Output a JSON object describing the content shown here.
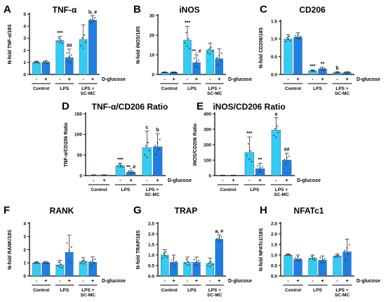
{
  "colors": {
    "light": "#33ccf2",
    "dark": "#1f7fe0",
    "axis": "#000000"
  },
  "group_labels": [
    "Control",
    "LPS",
    "LPS +",
    "SC-MC"
  ],
  "glucose_signs": [
    "-",
    "+",
    "-",
    "+",
    "-",
    "+"
  ],
  "glucose_label": "D-glucose",
  "chart_data": [
    {
      "letter": "A",
      "title": "TNF-α",
      "type": "bar",
      "ylabel": "N-fold TNF-α/18S",
      "ylim": [
        0,
        5
      ],
      "yticks": [
        0,
        1,
        2,
        3,
        4,
        5
      ],
      "values": [
        1.0,
        1.0,
        2.8,
        1.4,
        2.9,
        4.5
      ],
      "errors": [
        0.1,
        0.15,
        0.35,
        0.7,
        1.2,
        0.35
      ],
      "sig": [
        "",
        "",
        "***",
        "##",
        "",
        "b, #"
      ]
    },
    {
      "letter": "B",
      "title": "iNOS",
      "type": "bar",
      "ylabel": "N-fold iNOS/18S",
      "ylim": [
        0,
        30
      ],
      "yticks": [
        0,
        10,
        20,
        30
      ],
      "values": [
        1.0,
        1.0,
        17.5,
        6.0,
        12.5,
        8.0
      ],
      "errors": [
        0.3,
        0.3,
        7.0,
        4.0,
        3.5,
        5.0
      ],
      "sig": [
        "",
        "",
        "***",
        "**, #",
        "",
        ""
      ]
    },
    {
      "letter": "C",
      "title": "CD206",
      "type": "bar",
      "ylabel": "N-fold CD206/18S",
      "ylim": [
        0,
        1.5
      ],
      "yticks": [
        0.0,
        0.5,
        1.0,
        1.5
      ],
      "values": [
        1.0,
        1.05,
        0.1,
        0.15,
        0.05,
        0.05
      ],
      "errors": [
        0.12,
        0.12,
        0.03,
        0.05,
        0.03,
        0.03
      ],
      "sig": [
        "",
        "",
        "***",
        "**",
        "b",
        ""
      ]
    },
    {
      "letter": "D",
      "title": "TNF-α/CD206 Ratio",
      "type": "bar",
      "ylabel": "TNF-α/CD206 Ratio",
      "ylim": [
        0,
        150
      ],
      "yticks": [
        0,
        50,
        100,
        150
      ],
      "values": [
        1,
        1,
        24,
        8,
        68,
        70
      ],
      "errors": [
        0.5,
        0.5,
        6,
        4,
        40,
        32
      ],
      "sig": [
        "",
        "",
        "***",
        "**, #",
        "c",
        "b"
      ]
    },
    {
      "letter": "E",
      "title": "iNOS/CD206 Ratio",
      "type": "bar",
      "ylabel": "iNOS/CD206 Ratio",
      "ylim": [
        0,
        400
      ],
      "yticks": [
        0,
        100,
        200,
        300,
        400
      ],
      "values": [
        1,
        1,
        150,
        45,
        295,
        100
      ],
      "errors": [
        1,
        1,
        100,
        35,
        80,
        45
      ],
      "sig": [
        "",
        "",
        "***",
        "**",
        "a",
        "##"
      ]
    },
    {
      "letter": "F",
      "title": "RANK",
      "type": "bar",
      "ylabel": "N-fold RANK/18S",
      "ylim": [
        0,
        4
      ],
      "yticks": [
        0,
        1,
        2,
        3,
        4
      ],
      "values": [
        1.0,
        1.0,
        0.85,
        1.8,
        1.1,
        1.05
      ],
      "errors": [
        0.08,
        0.1,
        0.35,
        1.3,
        0.3,
        0.4
      ],
      "sig": [
        "",
        "",
        "",
        "",
        "",
        ""
      ]
    },
    {
      "letter": "G",
      "title": "TRAP",
      "type": "bar",
      "ylabel": "N-fold TRAP/18S",
      "ylim": [
        0,
        2.5
      ],
      "yticks": [
        0.0,
        0.5,
        1.0,
        1.5,
        2.0,
        2.5
      ],
      "values": [
        1.0,
        0.65,
        0.65,
        0.65,
        0.6,
        1.75
      ],
      "errors": [
        0.25,
        0.35,
        0.25,
        0.25,
        0.25,
        0.2
      ],
      "sig": [
        "",
        "",
        "",
        "",
        "",
        "a, #"
      ]
    },
    {
      "letter": "H",
      "title": "NFATc1",
      "type": "bar",
      "ylabel": "N-fold NFATc1/18S",
      "ylim": [
        0,
        2.5
      ],
      "yticks": [
        0.0,
        0.5,
        1.0,
        1.5,
        2.0,
        2.5
      ],
      "values": [
        1.0,
        0.8,
        0.85,
        0.75,
        0.95,
        1.15
      ],
      "errors": [
        0.05,
        0.2,
        0.15,
        0.2,
        0.1,
        0.6
      ],
      "sig": [
        "",
        "",
        "",
        "",
        "",
        ""
      ]
    }
  ]
}
